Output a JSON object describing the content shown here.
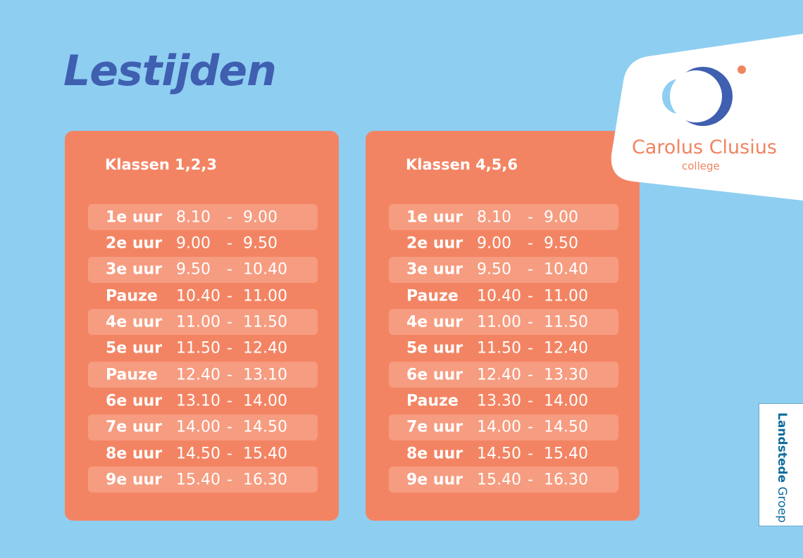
{
  "title": "Lestijden",
  "schedules": [
    {
      "heading": "Klassen 1,2,3",
      "rows": [
        {
          "label": "1e uur",
          "start": "8.10",
          "end": "9.00"
        },
        {
          "label": "2e uur",
          "start": "9.00",
          "end": "9.50"
        },
        {
          "label": "3e uur",
          "start": "9.50",
          "end": "10.40"
        },
        {
          "label": "Pauze",
          "start": "10.40",
          "end": "11.00"
        },
        {
          "label": "4e uur",
          "start": "11.00",
          "end": "11.50"
        },
        {
          "label": "5e uur",
          "start": "11.50",
          "end": "12.40"
        },
        {
          "label": "Pauze",
          "start": "12.40",
          "end": "13.10"
        },
        {
          "label": "6e uur",
          "start": "13.10",
          "end": "14.00"
        },
        {
          "label": "7e uur",
          "start": "14.00",
          "end": "14.50"
        },
        {
          "label": "8e uur",
          "start": "14.50",
          "end": "15.40"
        },
        {
          "label": "9e uur",
          "start": "15.40",
          "end": "16.30"
        }
      ]
    },
    {
      "heading": "Klassen 4,5,6",
      "rows": [
        {
          "label": "1e uur",
          "start": "8.10",
          "end": "9.00"
        },
        {
          "label": "2e uur",
          "start": "9.00",
          "end": "9.50"
        },
        {
          "label": "3e uur",
          "start": "9.50",
          "end": "10.40"
        },
        {
          "label": "Pauze",
          "start": "10.40",
          "end": "11.00"
        },
        {
          "label": "4e uur",
          "start": "11.00",
          "end": "11.50"
        },
        {
          "label": "5e uur",
          "start": "11.50",
          "end": "12.40"
        },
        {
          "label": "6e uur",
          "start": "12.40",
          "end": "13.30"
        },
        {
          "label": "Pauze",
          "start": "13.30",
          "end": "14.00"
        },
        {
          "label": "7e uur",
          "start": "14.00",
          "end": "14.50"
        },
        {
          "label": "8e uur",
          "start": "14.50",
          "end": "15.40"
        },
        {
          "label": "9e uur",
          "start": "15.40",
          "end": "16.30"
        }
      ]
    }
  ],
  "dash": "-",
  "logo": {
    "name": "Carolus Clusius",
    "sub": "college"
  },
  "footer_logo": {
    "bold": "Landstede",
    "light": " Groep"
  },
  "colors": {
    "background": "#8ECEF1",
    "card": "#F38463",
    "stripe": "#F69C80",
    "title": "#3F5FB0",
    "logo_orange": "#EF8461"
  }
}
